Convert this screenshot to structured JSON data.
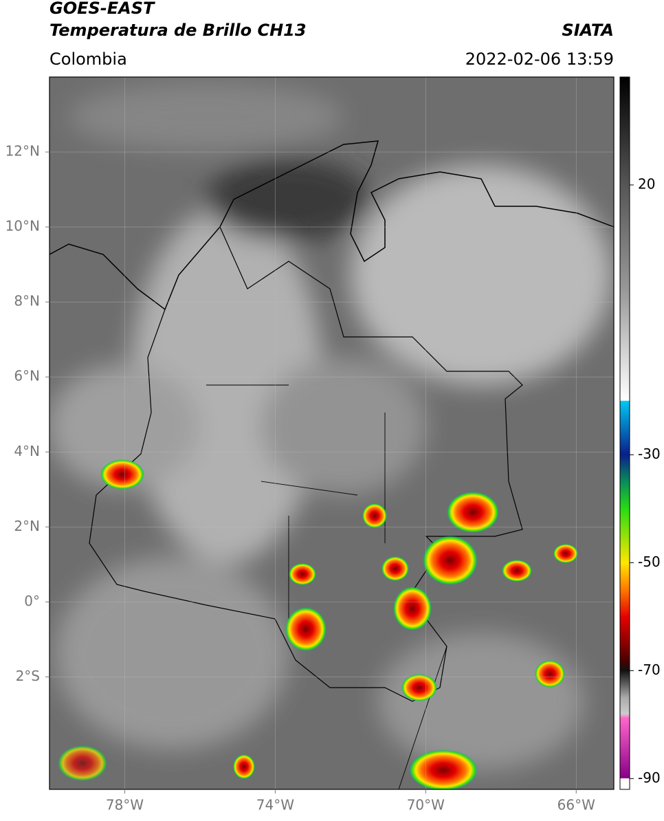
{
  "header": {
    "title": "GOES-EAST",
    "subtitle": "Temperatura de Brillo CH13",
    "source": "SIATA",
    "region": "Colombia",
    "datetime": "2022-02-06 13:59"
  },
  "map": {
    "xlim": [
      -80,
      -65
    ],
    "ylim": [
      -5,
      14
    ],
    "xticks": [
      {
        "value": -78,
        "label": "78°W"
      },
      {
        "value": -74,
        "label": "74°W"
      },
      {
        "value": -70,
        "label": "70°W"
      },
      {
        "value": -66,
        "label": "66°W"
      }
    ],
    "yticks": [
      {
        "value": 12,
        "label": "12°N"
      },
      {
        "value": 10,
        "label": "10°N"
      },
      {
        "value": 8,
        "label": "8°N"
      },
      {
        "value": 6,
        "label": "6°N"
      },
      {
        "value": 4,
        "label": "4°N"
      },
      {
        "value": 2,
        "label": "2°N"
      },
      {
        "value": 0,
        "label": "0°"
      },
      {
        "value": -2,
        "label": "2°S"
      }
    ]
  },
  "colorbar": {
    "lim": [
      -92,
      40
    ],
    "ticks": [
      20,
      -30,
      -50,
      -70,
      -90
    ]
  }
}
